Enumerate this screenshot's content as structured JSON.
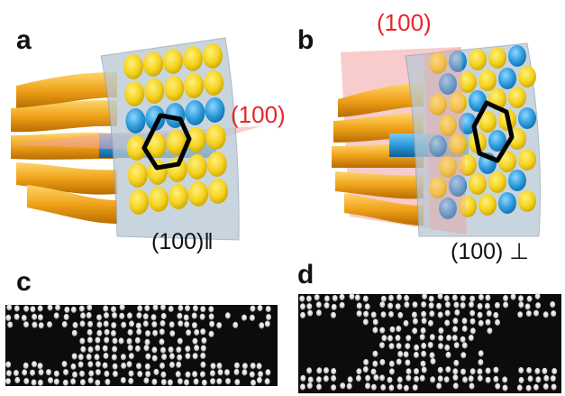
{
  "panels": {
    "a": {
      "letter": "a",
      "plane_label": "(100)",
      "orientation_label": "(100)‖"
    },
    "b": {
      "letter": "b",
      "plane_label": "(100)",
      "orientation_label": "(100) ⊥"
    },
    "c": {
      "letter": "c"
    },
    "d": {
      "letter": "d"
    }
  },
  "colors": {
    "tube_orange": "#f0a21a",
    "rod_yellow": "#f5d21e",
    "rod_blue": "#2a9bdc",
    "glass_panel": "#b8c8d4",
    "plane_red": "#f2a3a3",
    "label_red": "#e8262b",
    "micrograph_bg": "#0c0c0c",
    "particle": "#e6e6e6"
  }
}
